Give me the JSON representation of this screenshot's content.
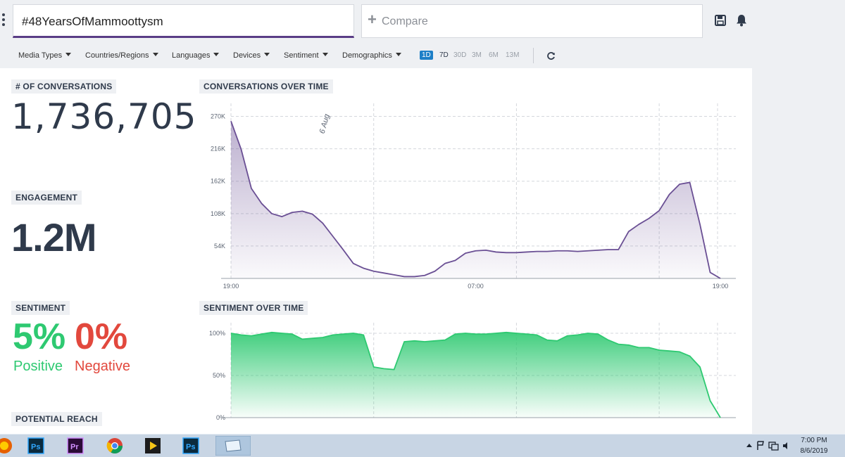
{
  "search": {
    "query": "#48YearsOfMammoottysm",
    "compare_placeholder": "Compare"
  },
  "filters": [
    {
      "label": "Media Types"
    },
    {
      "label": "Countries/Regions"
    },
    {
      "label": "Languages"
    },
    {
      "label": "Devices"
    },
    {
      "label": "Sentiment"
    },
    {
      "label": "Demographics"
    }
  ],
  "ranges": [
    {
      "label": "1D",
      "active": true
    },
    {
      "label": "7D",
      "active": false
    },
    {
      "label": "30D",
      "active": false
    },
    {
      "label": "3M",
      "active": false
    },
    {
      "label": "6M",
      "active": false
    },
    {
      "label": "13M",
      "active": false
    }
  ],
  "metrics": {
    "conversations_label": "# OF CONVERSATIONS",
    "conversations_value": "1,736,705",
    "engagement_label": "ENGAGEMENT",
    "engagement_value": "1.2M",
    "sentiment_label": "SENTIMENT",
    "positive_value": "5%",
    "positive_label": "Positive",
    "negative_value": "0%",
    "negative_label": "Negative",
    "reach_label": "POTENTIAL REACH"
  },
  "colors": {
    "accent": "#5a3d86",
    "positive": "#2ec971",
    "negative": "#e2483d",
    "active_range": "#1d7fc7"
  },
  "chart_data": [
    {
      "type": "area",
      "title": "CONVERSATIONS OVER TIME",
      "annotation": "6 Aug",
      "x_ticks": [
        "19:00",
        "07:00",
        "19:00"
      ],
      "y_ticks": [
        "54K",
        "108K",
        "162K",
        "216K",
        "270K"
      ],
      "ylim": [
        0,
        280000
      ],
      "x": [
        0,
        0.5,
        1,
        1.5,
        2,
        2.5,
        3,
        3.5,
        4,
        4.5,
        5,
        5.5,
        6,
        6.5,
        7,
        7.5,
        8,
        8.5,
        9,
        9.5,
        10,
        10.5,
        11,
        11.5,
        12,
        12.5,
        13,
        13.5,
        14,
        14.5,
        15,
        15.5,
        16,
        16.5,
        17,
        17.5,
        18,
        18.5,
        19,
        19.5,
        20,
        20.5,
        21,
        21.5,
        22,
        22.5,
        23,
        23.5,
        24
      ],
      "values": [
        262000,
        215000,
        150000,
        125000,
        108000,
        103000,
        110000,
        112000,
        107000,
        92000,
        70000,
        48000,
        25000,
        17000,
        12000,
        9000,
        6000,
        3000,
        3000,
        5000,
        12000,
        25000,
        30000,
        42000,
        46000,
        47000,
        44000,
        43000,
        43000,
        44000,
        45000,
        45000,
        46000,
        46000,
        45000,
        46000,
        47000,
        48000,
        48000,
        78000,
        90000,
        100000,
        113000,
        140000,
        157000,
        160000,
        90000,
        10000,
        0
      ],
      "grid": true,
      "color": "#6a4f94"
    },
    {
      "type": "area",
      "title": "SENTIMENT OVER TIME",
      "x_ticks": [],
      "y_ticks": [
        "0%",
        "50%",
        "100%"
      ],
      "ylim": [
        0,
        110
      ],
      "x": [
        0,
        0.5,
        1,
        1.5,
        2,
        2.5,
        3,
        3.5,
        4,
        4.5,
        5,
        5.5,
        6,
        6.5,
        7,
        7.5,
        8,
        8.5,
        9,
        9.5,
        10,
        10.5,
        11,
        11.5,
        12,
        12.5,
        13,
        13.5,
        14,
        14.5,
        15,
        15.5,
        16,
        16.5,
        17,
        17.5,
        18,
        18.5,
        19,
        19.5,
        20,
        20.5,
        21,
        21.5,
        22,
        22.5,
        23,
        23.5,
        24
      ],
      "values": [
        100,
        98,
        97,
        99,
        101,
        100,
        99,
        93,
        94,
        95,
        98,
        99,
        100,
        98,
        60,
        58,
        57,
        90,
        91,
        90,
        91,
        92,
        99,
        100,
        99,
        99,
        100,
        101,
        100,
        99,
        98,
        92,
        91,
        97,
        98,
        100,
        99,
        92,
        87,
        86,
        83,
        83,
        80,
        79,
        78,
        73,
        60,
        20,
        0
      ],
      "grid": true,
      "color": "#2ec971"
    }
  ],
  "taskbar": {
    "time": "7:00 PM",
    "date": "8/6/2019",
    "apps": [
      "firefox",
      "photoshop",
      "premiere",
      "chrome",
      "media-player",
      "photoshop",
      "notes"
    ]
  }
}
